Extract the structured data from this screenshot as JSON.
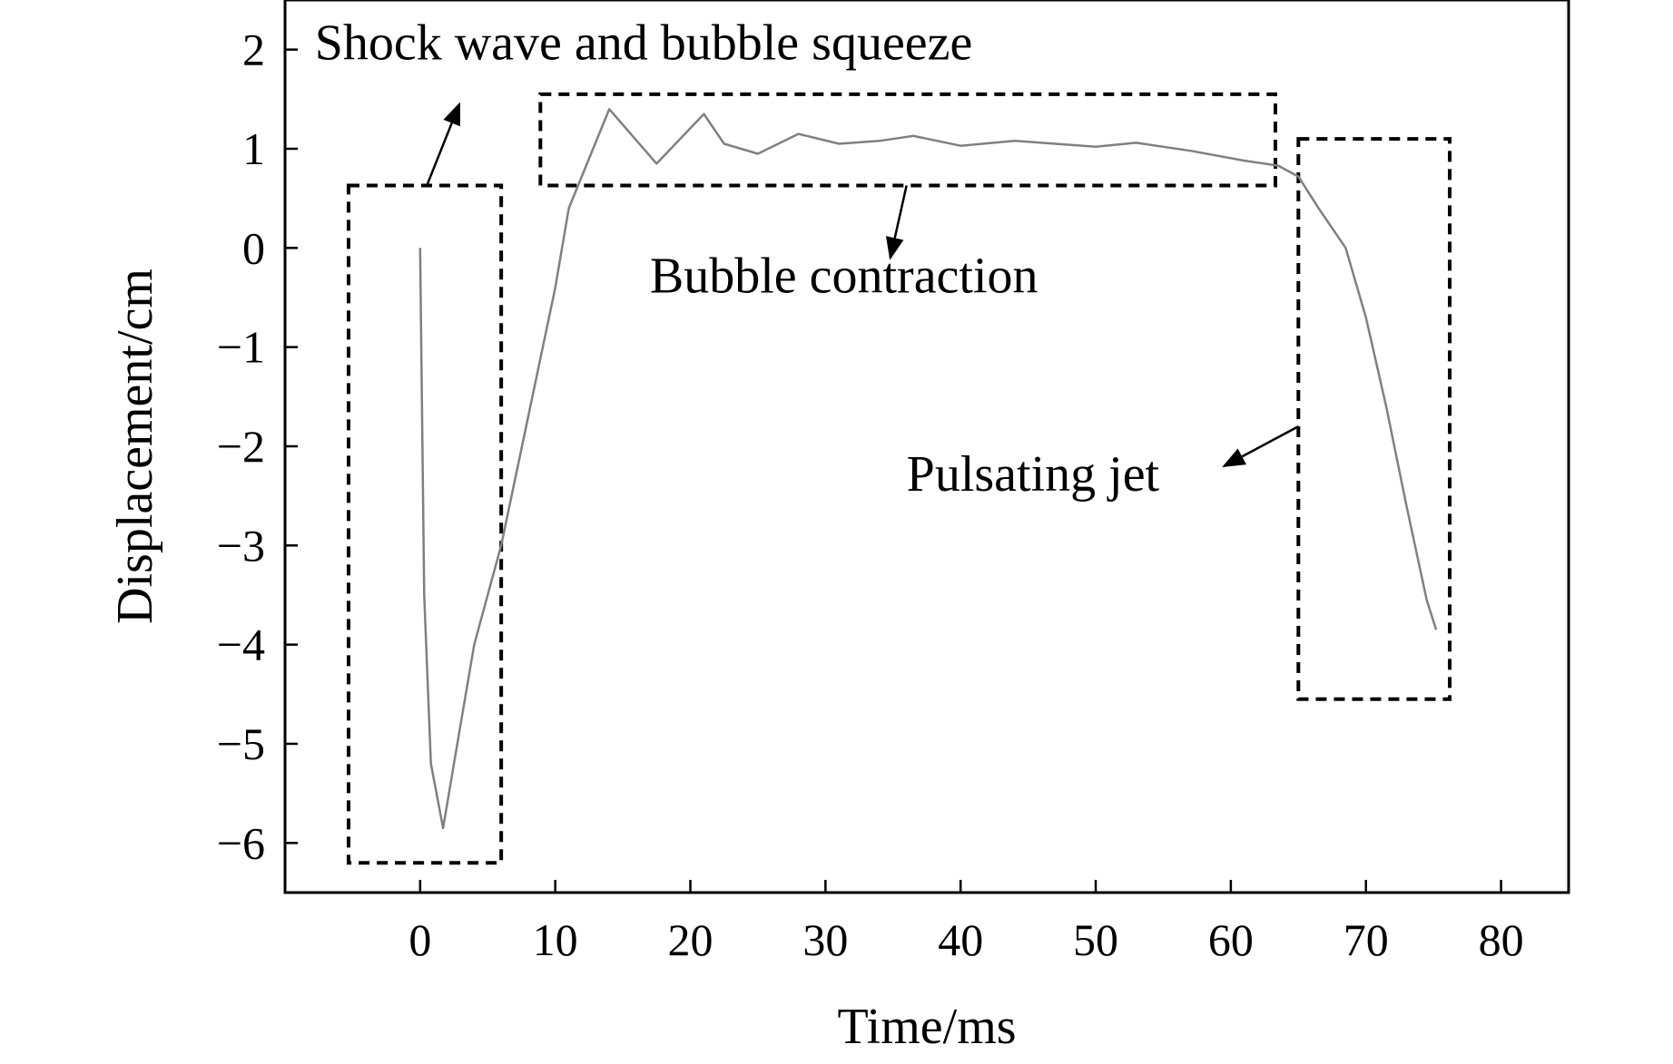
{
  "chart_data": {
    "type": "line",
    "title": "",
    "xlabel": "Time/ms",
    "ylabel": "Displacement/cm",
    "xlim": [
      -10,
      85
    ],
    "ylim": [
      -6.5,
      2.5
    ],
    "xticks": [
      0,
      10,
      20,
      30,
      40,
      50,
      60,
      70,
      80
    ],
    "yticks": [
      2,
      1,
      0,
      -1,
      -2,
      -3,
      -4,
      -5,
      -6
    ],
    "xtick_labels": [
      "0",
      "10",
      "20",
      "30",
      "40",
      "50",
      "60",
      "70",
      "80"
    ],
    "ytick_labels": [
      "2",
      "1",
      "0",
      "−1",
      "−2",
      "−3",
      "−4",
      "−5",
      "−6"
    ],
    "grid": false,
    "series": [
      {
        "name": "displacement",
        "color": "#808080",
        "x": [
          0,
          0.3,
          0.8,
          1.7,
          3.0,
          4.0,
          6.0,
          8.0,
          10.0,
          11.0,
          12.5,
          14.0,
          17.5,
          21.0,
          22.5,
          25.0,
          28.0,
          31.0,
          34.0,
          36.5,
          40.0,
          44.0,
          47.0,
          50.0,
          53.0,
          57.0,
          61.0,
          63.5,
          65.0,
          66.5,
          68.5,
          70.0,
          71.5,
          73.0,
          74.5,
          75.2
        ],
        "y": [
          0,
          -3.5,
          -5.2,
          -5.85,
          -4.8,
          -4.0,
          -3.0,
          -1.7,
          -0.4,
          0.4,
          0.9,
          1.4,
          0.85,
          1.35,
          1.05,
          0.95,
          1.15,
          1.05,
          1.08,
          1.13,
          1.03,
          1.08,
          1.05,
          1.02,
          1.06,
          0.98,
          0.88,
          0.83,
          0.72,
          0.4,
          0.0,
          -0.7,
          -1.6,
          -2.6,
          -3.55,
          -3.85
        ]
      }
    ],
    "annotations": [
      {
        "name": "shock-wave",
        "text": "Shock wave and bubble squeeze",
        "box": {
          "x0": -5.3,
          "x1": 6.0,
          "y0": -6.2,
          "y1": 0.63
        },
        "text_anchor": {
          "x": -7.8,
          "y": 1.9
        },
        "arrow_from": {
          "x": 0.5,
          "y": 0.63
        },
        "arrow_to": {
          "x": 2.9,
          "y": 1.45
        }
      },
      {
        "name": "bubble-contraction",
        "text": "Bubble contraction",
        "box": {
          "x0": 8.9,
          "x1": 63.3,
          "y0": 0.63,
          "y1": 1.55
        },
        "text_anchor": {
          "x": 17.0,
          "y": -0.45
        },
        "arrow_from": {
          "x": 36.0,
          "y": 0.63
        },
        "arrow_to": {
          "x": 34.8,
          "y": -0.1
        }
      },
      {
        "name": "pulsating-jet",
        "text": "Pulsating jet",
        "box": {
          "x0": 65.0,
          "x1": 76.2,
          "y0": -4.55,
          "y1": 1.1
        },
        "text_anchor": {
          "x": 36.0,
          "y": -2.45
        },
        "arrow_from": {
          "x": 65.0,
          "y": -1.8
        },
        "arrow_to": {
          "x": 59.5,
          "y": -2.2
        }
      }
    ]
  }
}
